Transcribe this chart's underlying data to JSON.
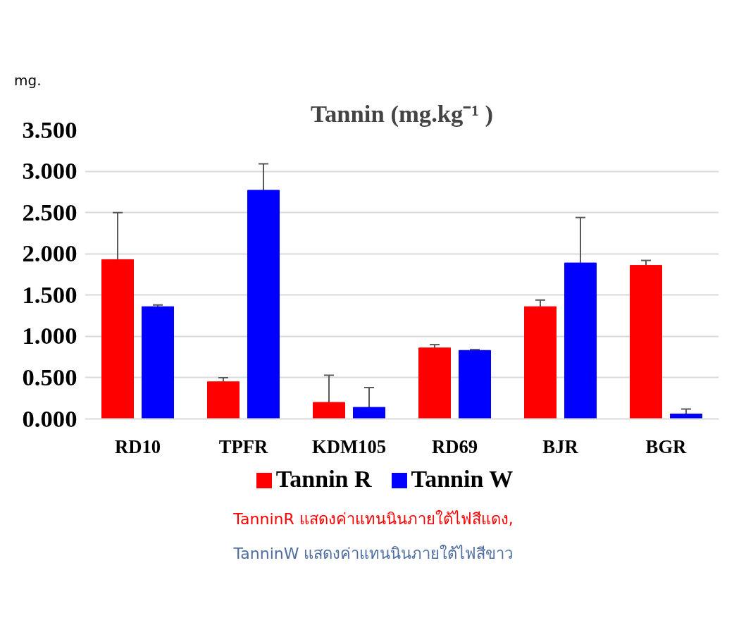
{
  "chart_data": {
    "type": "bar",
    "title": "Tannin (mg.kg⁻¹ )",
    "ylabel": "mg.",
    "categories": [
      "RD10",
      "TPFR",
      "KDM105",
      "RD69",
      "BJR",
      "BGR"
    ],
    "series": [
      {
        "name": "Tannin R",
        "color": "#ff0000",
        "values": [
          1.93,
          0.45,
          0.2,
          0.86,
          1.36,
          1.86
        ],
        "errors": [
          [
            1.93,
            2.5
          ],
          [
            0.45,
            0.5
          ],
          [
            0.2,
            0.53
          ],
          [
            0.86,
            0.9
          ],
          [
            1.36,
            1.44
          ],
          [
            1.86,
            1.92
          ]
        ]
      },
      {
        "name": "Tannin W",
        "color": "#0000ff",
        "values": [
          1.36,
          2.77,
          0.14,
          0.83,
          1.89,
          0.06
        ],
        "errors": [
          [
            1.36,
            1.38
          ],
          [
            2.77,
            3.09
          ],
          [
            0.14,
            0.38
          ],
          [
            0.83,
            0.84
          ],
          [
            1.89,
            2.44
          ],
          [
            0.06,
            0.12
          ]
        ]
      }
    ],
    "ylim": [
      0,
      3.5
    ],
    "yticks": [
      {
        "value": 0,
        "label": "0.000"
      },
      {
        "value": 0.5,
        "label": "0.500"
      },
      {
        "value": 1,
        "label": "1.000"
      },
      {
        "value": 1.5,
        "label": "1.500"
      },
      {
        "value": 2,
        "label": "2.000"
      },
      {
        "value": 2.5,
        "label": "2.500"
      },
      {
        "value": 3,
        "label": "3.000"
      },
      {
        "value": 3.5,
        "label": "3.500"
      }
    ],
    "grid": "y",
    "legend": "bottom",
    "annotations": [
      "TanninR แสดงค่าแทนนินภายใต้ไฟสีแดง,",
      "TanninW แสดงค่าแทนนินภายใต้ไฟสีขาว"
    ]
  }
}
